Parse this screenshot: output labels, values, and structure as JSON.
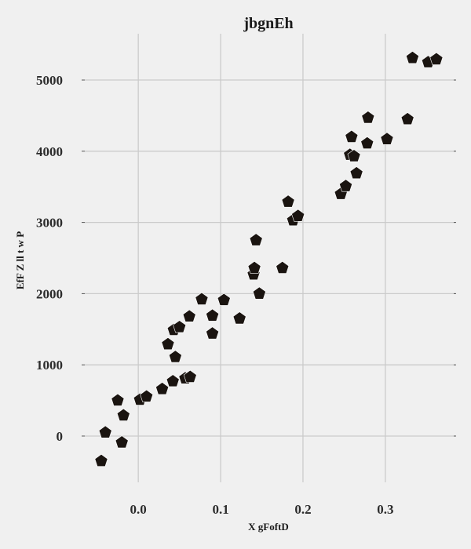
{
  "chart_data": {
    "type": "scatter",
    "title": "jbgnEh",
    "xlabel": "X gFoftD",
    "ylabel": "EfF Z ll t w P",
    "xlim": [
      -0.065,
      0.385
    ],
    "ylim": [
      -650,
      5650
    ],
    "xticks": [
      0.0,
      0.1,
      0.2,
      0.3
    ],
    "xtick_labels": [
      "0.0",
      "0.1",
      "0.2",
      "0.3"
    ],
    "yticks": [
      0,
      1000,
      2000,
      3000,
      4000,
      5000
    ],
    "ytick_labels": [
      "0",
      "1000",
      "2000",
      "3000",
      "4000",
      "5000"
    ],
    "grid": true,
    "legend": "none",
    "marker": "pentagon",
    "marker_color": "#1a1410",
    "background": "#f0f0f0",
    "series": [
      {
        "x": [
          -0.045,
          -0.04,
          -0.025,
          -0.02,
          -0.018,
          0.002,
          0.01,
          0.029,
          0.036,
          0.042,
          0.043,
          0.045,
          0.05,
          0.057,
          0.062,
          0.063,
          0.077,
          0.09,
          0.09,
          0.104,
          0.123,
          0.14,
          0.141,
          0.143,
          0.147,
          0.175,
          0.182,
          0.188,
          0.194,
          0.246,
          0.252,
          0.257,
          0.259,
          0.262,
          0.265,
          0.278,
          0.279,
          0.302,
          0.327,
          0.333,
          0.352,
          0.362
        ],
        "y": [
          -350,
          50,
          500,
          -90,
          290,
          510,
          555,
          660,
          1290,
          770,
          1490,
          1110,
          1530,
          810,
          1680,
          830,
          1920,
          1690,
          1440,
          1910,
          1650,
          2270,
          2360,
          2750,
          2000,
          2360,
          3290,
          3030,
          3090,
          3400,
          3510,
          3950,
          4200,
          3930,
          3690,
          4110,
          4470,
          4170,
          4450,
          5310,
          5250,
          5290
        ]
      }
    ]
  }
}
